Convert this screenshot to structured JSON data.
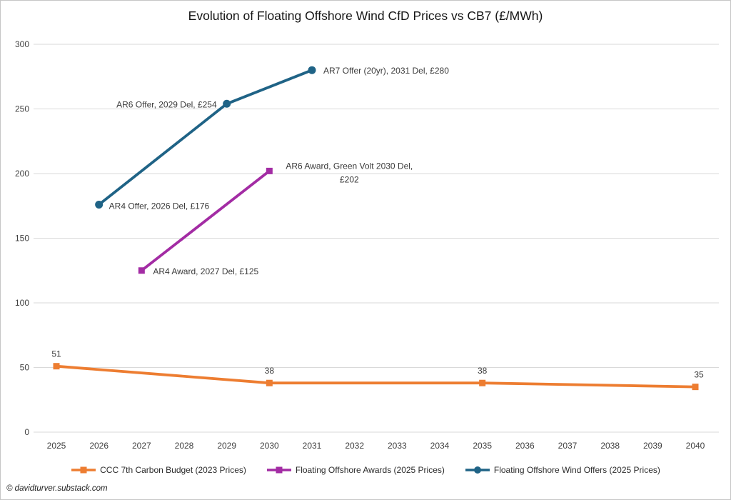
{
  "footer": {
    "copyright": "© davidturver.substack.com"
  },
  "chart_data": {
    "type": "line",
    "title": "Evolution of Floating Offshore Wind CfD Prices vs CB7 (£/MWh)",
    "xlabel": "",
    "ylabel": "",
    "ylim": [
      0,
      300
    ],
    "y_ticks": [
      0,
      50,
      100,
      150,
      200,
      250,
      300
    ],
    "x_ticks": [
      2025,
      2026,
      2027,
      2028,
      2029,
      2030,
      2031,
      2032,
      2033,
      2034,
      2035,
      2036,
      2037,
      2038,
      2039,
      2040
    ],
    "grid": true,
    "gridline_color": "#d9d9d9",
    "tick_label_color": "#404040",
    "data_label_color": "#3a3a3a",
    "legend_position": "bottom",
    "series": [
      {
        "name": "CCC 7th Carbon Budget (2023 Prices)",
        "color": "#ED7D31",
        "marker": "square",
        "points": [
          {
            "x": 2025,
            "y": 51,
            "label": "51",
            "label_anchor": "middle",
            "label_dx": 0,
            "label_dy": -13
          },
          {
            "x": 2030,
            "y": 38,
            "label": "38",
            "label_anchor": "middle",
            "label_dx": 0,
            "label_dy": -13
          },
          {
            "x": 2035,
            "y": 38,
            "label": "38",
            "label_anchor": "middle",
            "label_dx": 0,
            "label_dy": -13
          },
          {
            "x": 2040,
            "y": 35,
            "label": "35",
            "label_anchor": "middle",
            "label_dx": 5,
            "label_dy": -13
          }
        ]
      },
      {
        "name": "Floating Offshore Awards (2025 Prices)",
        "color": "#A32CA4",
        "marker": "square",
        "points": [
          {
            "x": 2027,
            "y": 125,
            "label": "AR4 Award, 2027 Del, £125",
            "label_anchor": "start",
            "label_dx": 16,
            "label_dy": 5
          },
          {
            "x": 2030,
            "y": 202,
            "label": "AR6 Award, Green Volt 2030 Del,\n£202",
            "label_anchor": "middle",
            "label_dx": 112,
            "label_dy": -3
          }
        ]
      },
      {
        "name": "Floating Offshore Wind Offers (2025 Prices)",
        "color": "#1F6386",
        "marker": "circle",
        "points": [
          {
            "x": 2026,
            "y": 176,
            "label": "AR4 Offer, 2026 Del, £176",
            "label_anchor": "start",
            "label_dx": 14,
            "label_dy": 6
          },
          {
            "x": 2029,
            "y": 254,
            "label": "AR6 Offer, 2029 Del, £254",
            "label_anchor": "end",
            "label_dx": -14,
            "label_dy": 5
          },
          {
            "x": 2031,
            "y": 280,
            "label": "AR7 Offer (20yr), 2031 Del, £280",
            "label_anchor": "start",
            "label_dx": 16,
            "label_dy": 5
          }
        ]
      }
    ]
  }
}
